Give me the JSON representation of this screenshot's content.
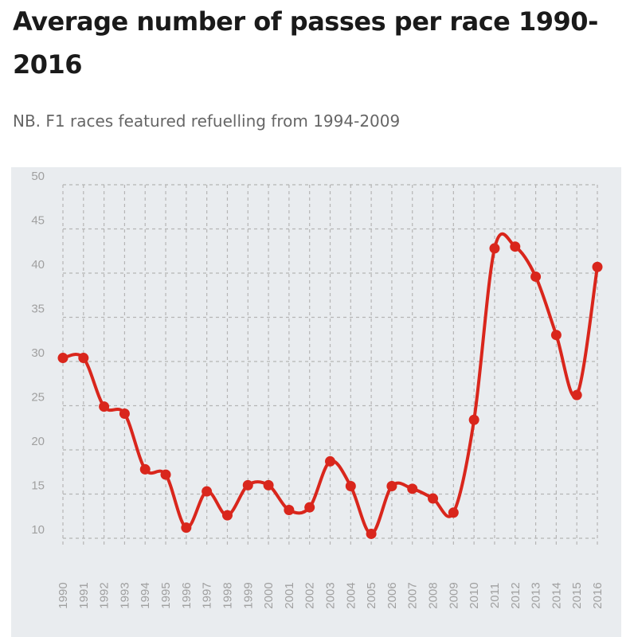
{
  "title": "Average number of passes per race 1990-2016",
  "subtitle": "NB. F1 races featured refuelling from 1994-2009",
  "colors": {
    "line": "#d9261c",
    "grid": "#b5b5b5",
    "tick_label": "#a0a0a0",
    "panel": "#e9ecef",
    "title": "#1a1a1a",
    "subtitle": "#666666"
  },
  "chart_data": {
    "type": "line",
    "title": "Average number of passes per race 1990-2016",
    "subtitle": "NB. F1 races featured refuelling from 1994-2009",
    "xlabel": "",
    "ylabel": "",
    "ylim": [
      10,
      50
    ],
    "yticks": [
      10,
      15,
      20,
      25,
      30,
      35,
      40,
      45,
      50
    ],
    "grid": true,
    "legend": "none",
    "x": [
      "1990",
      "1991",
      "1992",
      "1993",
      "1994",
      "1995",
      "1996",
      "1997",
      "1998",
      "1999",
      "2000",
      "2001",
      "2002",
      "2003",
      "2004",
      "2005",
      "2006",
      "2007",
      "2008",
      "2009",
      "2010",
      "2011",
      "2012",
      "2013",
      "2014",
      "2015",
      "2016"
    ],
    "series": [
      {
        "name": "",
        "values": [
          30.4,
          30.4,
          24.9,
          24.1,
          17.8,
          17.2,
          11.2,
          15.3,
          12.6,
          16.0,
          16.0,
          13.2,
          13.5,
          18.7,
          15.9,
          10.5,
          15.9,
          15.6,
          14.5,
          12.9,
          23.4,
          42.8,
          43.0,
          39.6,
          33.0,
          26.2,
          40.7
        ]
      }
    ]
  }
}
